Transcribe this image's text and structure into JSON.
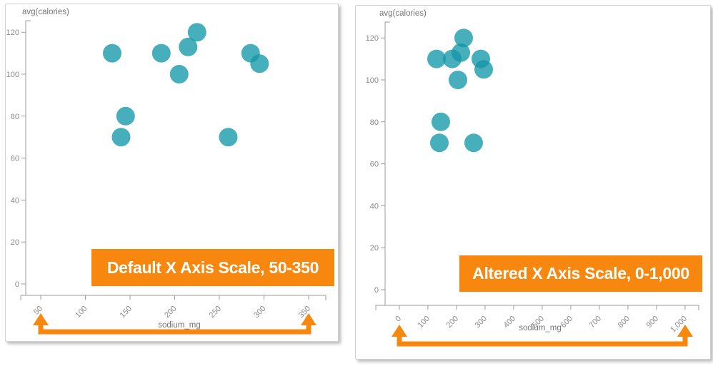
{
  "colors": {
    "point_teal": "#1397A8",
    "annotation_orange": "#F7870E",
    "axis_line": "#9B9B9B",
    "tick_text": "#8A8A8A",
    "axis_title_text": "#757575",
    "banner_text": "#FFFFFF",
    "card_background": "#FFFFFF"
  },
  "chart_data": [
    {
      "type": "scatter",
      "title": "",
      "ylabel": "avg(calories)",
      "xlabel": "sodium_mg",
      "annotation": "Default X Axis Scale, 50-350",
      "xlim": [
        50,
        350
      ],
      "ylim": [
        0,
        120
      ],
      "grid": false,
      "legend": "none",
      "x_tick_values": [
        50,
        100,
        150,
        200,
        250,
        300,
        350
      ],
      "x_tick_labels": [
        "50",
        "100",
        "150",
        "200",
        "250",
        "300",
        "350"
      ],
      "y_tick_values": [
        0,
        20,
        40,
        60,
        80,
        100,
        120
      ],
      "y_tick_labels": [
        "0",
        "20",
        "40",
        "60",
        "80",
        "100",
        "120"
      ],
      "points": [
        [
          130,
          110
        ],
        [
          140,
          70
        ],
        [
          145,
          80
        ],
        [
          185,
          110
        ],
        [
          205,
          100
        ],
        [
          215,
          113
        ],
        [
          225,
          120
        ],
        [
          260,
          70
        ],
        [
          285,
          110
        ],
        [
          295,
          105
        ]
      ]
    },
    {
      "type": "scatter",
      "title": "",
      "ylabel": "avg(calories)",
      "xlabel": "sodium_mg",
      "annotation": "Altered X Axis Scale, 0-1,000",
      "xlim": [
        0,
        1000
      ],
      "ylim": [
        0,
        120
      ],
      "grid": false,
      "legend": "none",
      "x_tick_values": [
        0,
        100,
        200,
        300,
        400,
        500,
        600,
        700,
        800,
        900,
        1000
      ],
      "x_tick_labels": [
        "0",
        "100",
        "200",
        "300",
        "400",
        "500",
        "600",
        "700",
        "800",
        "900",
        "1,000"
      ],
      "y_tick_values": [
        0,
        20,
        40,
        60,
        80,
        100,
        120
      ],
      "y_tick_labels": [
        "0",
        "20",
        "40",
        "60",
        "80",
        "100",
        "120"
      ],
      "points": [
        [
          130,
          110
        ],
        [
          140,
          70
        ],
        [
          145,
          80
        ],
        [
          185,
          110
        ],
        [
          205,
          100
        ],
        [
          215,
          113
        ],
        [
          225,
          120
        ],
        [
          260,
          70
        ],
        [
          285,
          110
        ],
        [
          295,
          105
        ]
      ]
    }
  ]
}
